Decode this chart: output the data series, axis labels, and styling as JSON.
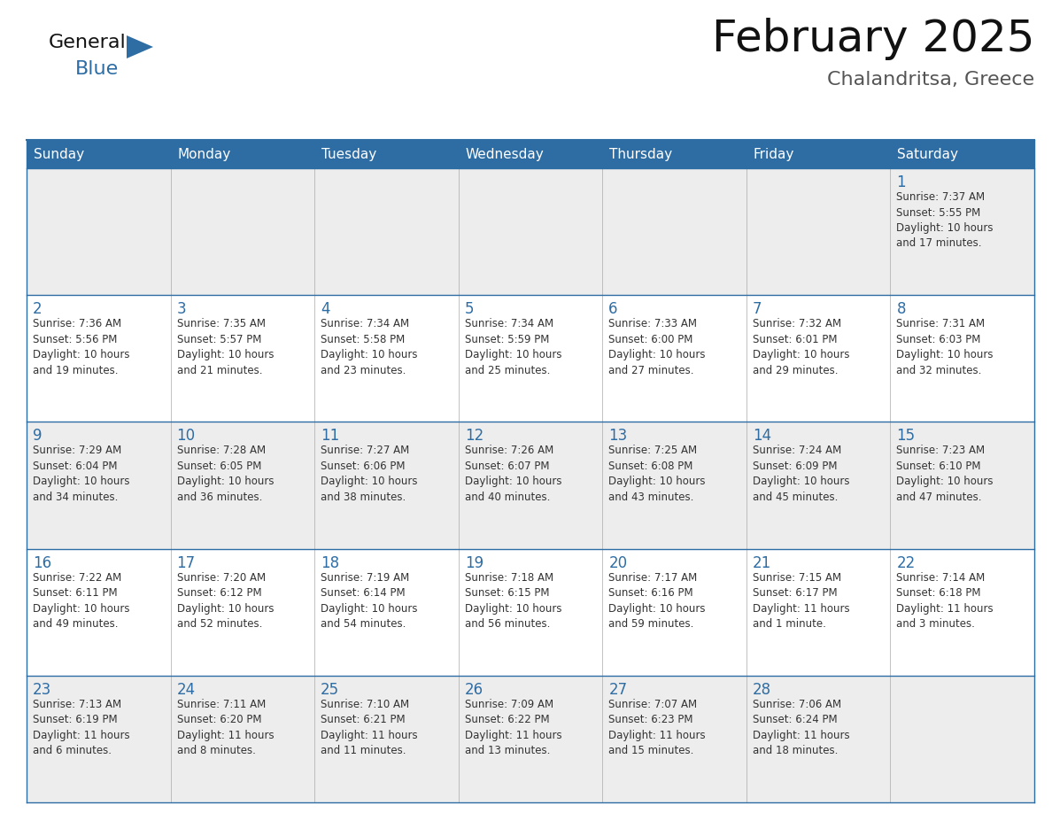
{
  "title": "February 2025",
  "subtitle": "Chalandritsa, Greece",
  "header_bg": "#2E6DA4",
  "header_text_color": "#FFFFFF",
  "cell_bg_light": "#EDEDED",
  "cell_bg_white": "#FFFFFF",
  "day_num_color": "#2E6DA4",
  "info_text_color": "#333333",
  "border_color": "#2E6DA4",
  "grid_color": "#AAAAAA",
  "days_of_week": [
    "Sunday",
    "Monday",
    "Tuesday",
    "Wednesday",
    "Thursday",
    "Friday",
    "Saturday"
  ],
  "weeks": [
    [
      {
        "day": "",
        "info": ""
      },
      {
        "day": "",
        "info": ""
      },
      {
        "day": "",
        "info": ""
      },
      {
        "day": "",
        "info": ""
      },
      {
        "day": "",
        "info": ""
      },
      {
        "day": "",
        "info": ""
      },
      {
        "day": "1",
        "info": "Sunrise: 7:37 AM\nSunset: 5:55 PM\nDaylight: 10 hours\nand 17 minutes."
      }
    ],
    [
      {
        "day": "2",
        "info": "Sunrise: 7:36 AM\nSunset: 5:56 PM\nDaylight: 10 hours\nand 19 minutes."
      },
      {
        "day": "3",
        "info": "Sunrise: 7:35 AM\nSunset: 5:57 PM\nDaylight: 10 hours\nand 21 minutes."
      },
      {
        "day": "4",
        "info": "Sunrise: 7:34 AM\nSunset: 5:58 PM\nDaylight: 10 hours\nand 23 minutes."
      },
      {
        "day": "5",
        "info": "Sunrise: 7:34 AM\nSunset: 5:59 PM\nDaylight: 10 hours\nand 25 minutes."
      },
      {
        "day": "6",
        "info": "Sunrise: 7:33 AM\nSunset: 6:00 PM\nDaylight: 10 hours\nand 27 minutes."
      },
      {
        "day": "7",
        "info": "Sunrise: 7:32 AM\nSunset: 6:01 PM\nDaylight: 10 hours\nand 29 minutes."
      },
      {
        "day": "8",
        "info": "Sunrise: 7:31 AM\nSunset: 6:03 PM\nDaylight: 10 hours\nand 32 minutes."
      }
    ],
    [
      {
        "day": "9",
        "info": "Sunrise: 7:29 AM\nSunset: 6:04 PM\nDaylight: 10 hours\nand 34 minutes."
      },
      {
        "day": "10",
        "info": "Sunrise: 7:28 AM\nSunset: 6:05 PM\nDaylight: 10 hours\nand 36 minutes."
      },
      {
        "day": "11",
        "info": "Sunrise: 7:27 AM\nSunset: 6:06 PM\nDaylight: 10 hours\nand 38 minutes."
      },
      {
        "day": "12",
        "info": "Sunrise: 7:26 AM\nSunset: 6:07 PM\nDaylight: 10 hours\nand 40 minutes."
      },
      {
        "day": "13",
        "info": "Sunrise: 7:25 AM\nSunset: 6:08 PM\nDaylight: 10 hours\nand 43 minutes."
      },
      {
        "day": "14",
        "info": "Sunrise: 7:24 AM\nSunset: 6:09 PM\nDaylight: 10 hours\nand 45 minutes."
      },
      {
        "day": "15",
        "info": "Sunrise: 7:23 AM\nSunset: 6:10 PM\nDaylight: 10 hours\nand 47 minutes."
      }
    ],
    [
      {
        "day": "16",
        "info": "Sunrise: 7:22 AM\nSunset: 6:11 PM\nDaylight: 10 hours\nand 49 minutes."
      },
      {
        "day": "17",
        "info": "Sunrise: 7:20 AM\nSunset: 6:12 PM\nDaylight: 10 hours\nand 52 minutes."
      },
      {
        "day": "18",
        "info": "Sunrise: 7:19 AM\nSunset: 6:14 PM\nDaylight: 10 hours\nand 54 minutes."
      },
      {
        "day": "19",
        "info": "Sunrise: 7:18 AM\nSunset: 6:15 PM\nDaylight: 10 hours\nand 56 minutes."
      },
      {
        "day": "20",
        "info": "Sunrise: 7:17 AM\nSunset: 6:16 PM\nDaylight: 10 hours\nand 59 minutes."
      },
      {
        "day": "21",
        "info": "Sunrise: 7:15 AM\nSunset: 6:17 PM\nDaylight: 11 hours\nand 1 minute."
      },
      {
        "day": "22",
        "info": "Sunrise: 7:14 AM\nSunset: 6:18 PM\nDaylight: 11 hours\nand 3 minutes."
      }
    ],
    [
      {
        "day": "23",
        "info": "Sunrise: 7:13 AM\nSunset: 6:19 PM\nDaylight: 11 hours\nand 6 minutes."
      },
      {
        "day": "24",
        "info": "Sunrise: 7:11 AM\nSunset: 6:20 PM\nDaylight: 11 hours\nand 8 minutes."
      },
      {
        "day": "25",
        "info": "Sunrise: 7:10 AM\nSunset: 6:21 PM\nDaylight: 11 hours\nand 11 minutes."
      },
      {
        "day": "26",
        "info": "Sunrise: 7:09 AM\nSunset: 6:22 PM\nDaylight: 11 hours\nand 13 minutes."
      },
      {
        "day": "27",
        "info": "Sunrise: 7:07 AM\nSunset: 6:23 PM\nDaylight: 11 hours\nand 15 minutes."
      },
      {
        "day": "28",
        "info": "Sunrise: 7:06 AM\nSunset: 6:24 PM\nDaylight: 11 hours\nand 18 minutes."
      },
      {
        "day": "",
        "info": ""
      }
    ]
  ],
  "title_fontsize": 36,
  "subtitle_fontsize": 16,
  "header_fontsize": 11,
  "day_num_fontsize": 12,
  "info_fontsize": 8.5
}
